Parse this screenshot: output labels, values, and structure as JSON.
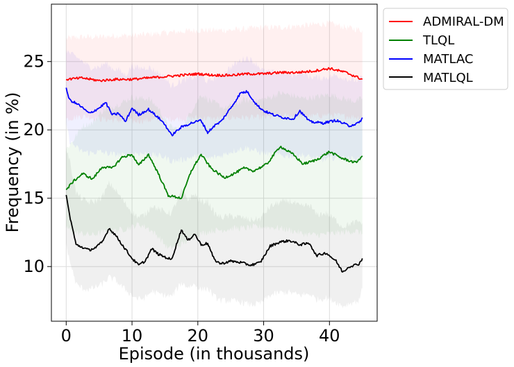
{
  "chart_data": {
    "type": "line",
    "title": "",
    "xlabel": "Episode (in thousands)",
    "ylabel": "Frequency (in %)",
    "xlim": [
      -2.25,
      47.25
    ],
    "ylim": [
      6,
      29.2
    ],
    "xticks": [
      0,
      10,
      20,
      30,
      40
    ],
    "yticks": [
      10,
      15,
      20,
      25
    ],
    "grid": true,
    "legend_position": "outside-top-right",
    "series": [
      {
        "name": "ADMIRAL-DM",
        "color": "#ff0000",
        "x": [
          0,
          2.5,
          5,
          7.5,
          10,
          12.5,
          15,
          17.5,
          20,
          22.5,
          25,
          27.5,
          30,
          32.5,
          35,
          37.5,
          40,
          42.5,
          45
        ],
        "y": [
          23.7,
          23.8,
          23.6,
          23.7,
          23.7,
          23.8,
          23.9,
          24.0,
          24.1,
          24.0,
          24.0,
          24.1,
          24.1,
          24.2,
          24.2,
          24.3,
          24.5,
          24.2,
          23.7
        ],
        "band_lower": [
          20.8,
          21.0,
          20.8,
          20.7,
          20.6,
          20.7,
          20.8,
          20.8,
          20.9,
          20.8,
          20.9,
          20.9,
          20.9,
          21.0,
          21.0,
          21.0,
          21.1,
          21.0,
          20.9
        ],
        "band_upper": [
          26.7,
          26.8,
          26.8,
          26.9,
          26.9,
          27.0,
          27.1,
          27.2,
          27.3,
          27.3,
          27.3,
          27.4,
          27.5,
          27.5,
          27.6,
          27.7,
          27.8,
          27.5,
          27.3
        ]
      },
      {
        "name": "TLQL",
        "color": "#008000",
        "x": [
          0,
          1,
          2.5,
          4,
          5.5,
          7,
          8.5,
          10,
          11,
          12.5,
          14,
          15.5,
          17.5,
          19,
          20.5,
          22,
          24,
          25.5,
          27,
          28.5,
          30.5,
          32.5,
          34.5,
          36,
          38,
          40,
          42,
          44,
          45
        ],
        "y": [
          15.6,
          16.2,
          16.8,
          16.4,
          17.3,
          17.2,
          18.0,
          18.2,
          17.4,
          18.2,
          16.8,
          15.2,
          15.0,
          17.0,
          18.2,
          17.2,
          16.5,
          16.8,
          17.2,
          17.0,
          17.5,
          18.8,
          18.2,
          17.5,
          17.8,
          18.4,
          17.9,
          17.6,
          18.1
        ],
        "band_lower": [
          12.9,
          12.5,
          12.4,
          12.3,
          12.5,
          12.6,
          12.7,
          12.9,
          13.1,
          12.8,
          12.2,
          11.3,
          11.6,
          12.1,
          12.4,
          12.6,
          12.7,
          12.8,
          12.8,
          12.9,
          12.9,
          12.8,
          12.6,
          12.4,
          12.3,
          12.4,
          12.5,
          12.6,
          12.4
        ],
        "band_upper": [
          18.6,
          19.2,
          20.3,
          20.5,
          21.4,
          21.7,
          22.0,
          22.4,
          22.3,
          22.3,
          21.6,
          20.3,
          20.0,
          21.4,
          22.6,
          22.1,
          21.6,
          21.8,
          22.2,
          22.1,
          22.3,
          22.7,
          22.5,
          22.3,
          22.4,
          22.6,
          22.3,
          22.1,
          22.3
        ]
      },
      {
        "name": "MATLAC",
        "color": "#0000ff",
        "x": [
          0,
          0.5,
          2,
          3.5,
          5,
          6,
          7,
          8,
          9,
          10,
          11,
          12.5,
          14,
          15,
          16,
          17.5,
          19,
          20.5,
          21.5,
          22.5,
          23.5,
          25,
          26.5,
          27.5,
          29,
          30,
          31.5,
          33,
          34.5,
          35.5,
          37,
          39,
          41,
          43,
          44.5,
          45
        ],
        "y": [
          23.0,
          22.2,
          21.8,
          21.2,
          21.6,
          22.0,
          21.1,
          21.2,
          20.6,
          21.6,
          21.1,
          21.5,
          20.9,
          20.4,
          19.6,
          20.2,
          20.5,
          20.7,
          19.8,
          20.3,
          20.6,
          21.6,
          22.7,
          22.8,
          21.8,
          21.4,
          21.1,
          20.9,
          20.8,
          21.4,
          20.6,
          20.5,
          20.7,
          20.3,
          20.5,
          20.9
        ],
        "band_lower": [
          20.5,
          19.2,
          18.5,
          18.3,
          18.4,
          18.3,
          18.2,
          18.2,
          18.1,
          18.3,
          18.3,
          18.2,
          18.1,
          18.0,
          17.7,
          17.8,
          18.0,
          18.1,
          17.9,
          18.0,
          18.1,
          18.4,
          18.6,
          18.7,
          18.4,
          18.3,
          18.2,
          18.1,
          18.1,
          18.2,
          18.0,
          17.8,
          18.0,
          17.9,
          17.8,
          18.0
        ],
        "band_upper": [
          25.9,
          25.6,
          25.2,
          24.6,
          24.6,
          24.9,
          24.5,
          24.4,
          24.0,
          24.7,
          24.5,
          24.6,
          24.2,
          23.8,
          23.2,
          23.6,
          23.8,
          24.0,
          23.5,
          23.8,
          24.0,
          24.6,
          25.1,
          25.3,
          24.8,
          24.3,
          24.2,
          24.2,
          24.0,
          24.3,
          23.9,
          23.8,
          24.0,
          23.7,
          23.6,
          23.9
        ]
      },
      {
        "name": "MATLQL",
        "color": "#000000",
        "x": [
          0,
          0.5,
          1.5,
          2.5,
          3.5,
          4.5,
          5.5,
          6.5,
          7.5,
          8.5,
          10,
          11,
          12,
          13,
          14,
          15,
          16,
          17.5,
          18.5,
          19.5,
          20.5,
          21.5,
          22.5,
          23.5,
          25,
          26.5,
          28,
          29.5,
          31,
          32.5,
          34,
          35.5,
          37,
          38,
          39.5,
          41,
          42,
          43,
          44.5,
          45
        ],
        "y": [
          15.2,
          13.8,
          11.6,
          11.4,
          11.2,
          11.4,
          11.8,
          12.8,
          12.3,
          11.6,
          10.6,
          10.1,
          10.4,
          11.3,
          10.9,
          10.7,
          10.5,
          12.7,
          11.9,
          12.4,
          11.6,
          11.7,
          10.5,
          10.2,
          10.4,
          10.3,
          10.1,
          10.3,
          11.5,
          11.8,
          11.9,
          11.6,
          11.7,
          10.8,
          11.0,
          10.4,
          9.6,
          10.0,
          10.2,
          10.6
        ],
        "band_lower": [
          11.5,
          10.5,
          8.7,
          8.4,
          8.3,
          8.5,
          8.7,
          9.2,
          9.0,
          8.5,
          7.9,
          7.6,
          7.7,
          8.2,
          8.0,
          7.9,
          7.8,
          8.8,
          8.5,
          8.7,
          8.3,
          8.4,
          7.8,
          7.5,
          7.5,
          7.4,
          7.2,
          7.3,
          7.9,
          8.1,
          8.1,
          7.9,
          8.0,
          7.6,
          7.7,
          7.4,
          7.1,
          7.3,
          7.5,
          8.4
        ],
        "band_upper": [
          18.6,
          17.8,
          15.4,
          14.9,
          14.7,
          14.8,
          15.1,
          16.1,
          15.6,
          14.9,
          14.0,
          13.6,
          13.8,
          14.5,
          14.2,
          14.0,
          13.9,
          15.5,
          14.9,
          15.3,
          14.7,
          14.8,
          13.9,
          13.6,
          13.7,
          13.6,
          13.4,
          13.5,
          14.4,
          14.7,
          14.8,
          14.4,
          14.5,
          13.8,
          13.9,
          13.4,
          12.9,
          13.1,
          13.3,
          13.2
        ]
      }
    ]
  }
}
